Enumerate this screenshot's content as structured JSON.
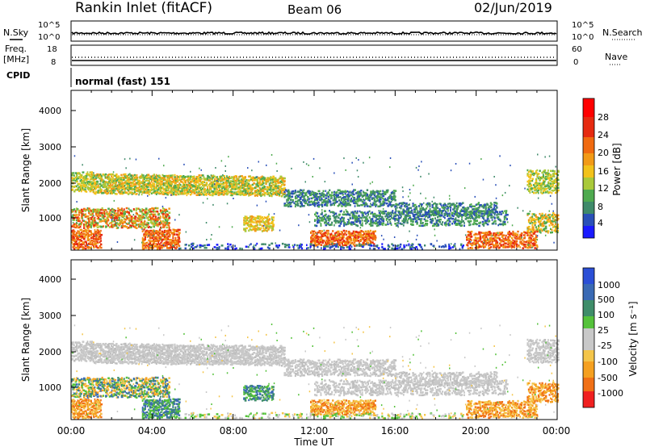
{
  "header": {
    "station": "Rankin Inlet (fitACF)",
    "beam": "Beam 06",
    "date": "02/Jun/2019"
  },
  "noise_panel": {
    "left_label": "N.Sky",
    "right_label": "N.Search",
    "left_ticks": [
      "10^5",
      "10^0"
    ],
    "right_ticks": [
      "10^5",
      "10^0"
    ]
  },
  "freq_panel": {
    "left_label_1": "Freq.",
    "left_label_2": "[MHz]",
    "right_label": "Nave",
    "left_ticks": [
      "18",
      "8"
    ],
    "right_ticks": [
      "60",
      "0"
    ]
  },
  "cpid_panel": {
    "label": "CPID",
    "value": "normal (fast) 151"
  },
  "chart_data": [
    {
      "type": "heatmap",
      "quantity": "Power",
      "ylabel": "Slant Range [km]",
      "ylim": [
        180,
        4600
      ],
      "yticks": [
        1000,
        2000,
        3000,
        4000
      ],
      "xlim": [
        0,
        24
      ],
      "colorbar": {
        "label": "Power [dB]",
        "range": [
          0,
          32
        ],
        "ticks": [
          "4",
          "8",
          "12",
          "16",
          "20",
          "24",
          "28"
        ],
        "colors": [
          "#1a1aff",
          "#2a50b8",
          "#3f8a6a",
          "#4faa4f",
          "#a9c93a",
          "#f2c21a",
          "#f29a17",
          "#f06a10",
          "#e62a10",
          "#ff0000"
        ]
      }
    },
    {
      "type": "heatmap",
      "quantity": "Velocity",
      "ylabel": "Slant Range [km]",
      "xlabel": "Time UT",
      "ylim": [
        180,
        4600
      ],
      "yticks": [
        1000,
        2000,
        3000,
        4000
      ],
      "xlim": [
        0,
        24
      ],
      "xticks": [
        "00:00",
        "04:00",
        "08:00",
        "12:00",
        "16:00",
        "20:00",
        "00:00"
      ],
      "colorbar": {
        "label": "Velocity [m s⁻¹]",
        "ticks": [
          "1000",
          "500",
          "100",
          "25",
          "-25",
          "-100",
          "-500",
          "-1000"
        ],
        "colors": [
          "#2b4fd6",
          "#3a6ab4",
          "#3f8d6a",
          "#55c23b",
          "#c8c8c8",
          "#f4c54a",
          "#f5a020",
          "#f07016",
          "#f02020"
        ]
      }
    }
  ],
  "x_axis": {
    "label": "Time UT",
    "ticks": [
      "00:00",
      "04:00",
      "08:00",
      "12:00",
      "16:00",
      "20:00",
      "00:00"
    ]
  }
}
